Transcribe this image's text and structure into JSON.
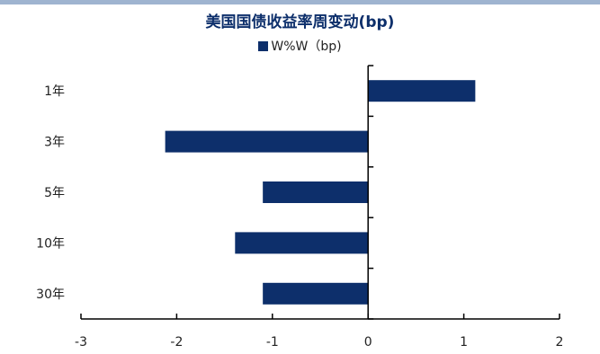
{
  "chart_data": {
    "type": "bar",
    "orientation": "horizontal",
    "title": "美国国债收益率周变动(bp)",
    "categories": [
      "1年",
      "3年",
      "5年",
      "10年",
      "30年"
    ],
    "series": [
      {
        "name": "W%W（bp)",
        "values": [
          1.12,
          -2.12,
          -1.1,
          -1.39,
          -1.1
        ]
      }
    ],
    "xlim": [
      -3,
      2
    ],
    "xticks": [
      "-3",
      "-2",
      "-1",
      "0",
      "1",
      "2"
    ],
    "grid": false,
    "legend": "top-center",
    "bar_color": "#0d2f6b"
  }
}
